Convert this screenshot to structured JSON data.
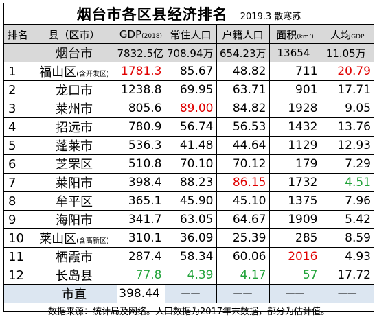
{
  "title": "烟台市各区县经济排名",
  "subtitle": "2019.3 散寒苏",
  "headers": {
    "rank": "排名",
    "county": "县（区市）",
    "gdp": "GDP",
    "gdp_unit": "(2018)",
    "resident": "常住人口",
    "registered": "户籍人口",
    "area": "面积",
    "area_unit": "(km²)",
    "per_capita": "人均",
    "per_capita_unit": "GDP"
  },
  "total": {
    "county": "烟台市",
    "gdp": "7832.5亿",
    "resident": "708.94万",
    "registered": "654.23万",
    "area": "13654",
    "per_capita": "11.05万"
  },
  "rows": [
    {
      "rank": "1",
      "county": "福山区",
      "note": "(含开发区)",
      "gdp": "1781.3",
      "resident": "85.67",
      "registered": "48.82",
      "area": "711",
      "per_capita": "20.79"
    },
    {
      "rank": "2",
      "county": "龙口市",
      "note": "",
      "gdp": "1238.8",
      "resident": "69.95",
      "registered": "63.71",
      "area": "901",
      "per_capita": "17.71"
    },
    {
      "rank": "3",
      "county": "莱州市",
      "note": "",
      "gdp": "805.6",
      "resident": "89.00",
      "registered": "84.82",
      "area": "1928",
      "per_capita": "9.05"
    },
    {
      "rank": "4",
      "county": "招远市",
      "note": "",
      "gdp": "780.9",
      "resident": "56.74",
      "registered": "56.53",
      "area": "1432",
      "per_capita": "13.76"
    },
    {
      "rank": "5",
      "county": "蓬莱市",
      "note": "",
      "gdp": "536.3",
      "resident": "41.48",
      "registered": "44.64",
      "area": "1129",
      "per_capita": "12.93"
    },
    {
      "rank": "6",
      "county": "芝罘区",
      "note": "",
      "gdp": "510.8",
      "resident": "70.10",
      "registered": "70.12",
      "area": "179",
      "per_capita": "7.29"
    },
    {
      "rank": "7",
      "county": "莱阳市",
      "note": "",
      "gdp": "398.4",
      "resident": "88.23",
      "registered": "86.15",
      "area": "1732",
      "per_capita": "4.51"
    },
    {
      "rank": "8",
      "county": "牟平区",
      "note": "",
      "gdp": "365.1",
      "resident": "45.90",
      "registered": "45.10",
      "area": "1375",
      "per_capita": "7.96"
    },
    {
      "rank": "9",
      "county": "海阳市",
      "note": "",
      "gdp": "341.7",
      "resident": "63.05",
      "registered": "64.67",
      "area": "1909",
      "per_capita": "5.42"
    },
    {
      "rank": "10",
      "county": "莱山区",
      "note": "(含高新区)",
      "gdp": "310.1",
      "resident": "36.09",
      "registered": "25.39",
      "area": "285",
      "per_capita": "8.59"
    },
    {
      "rank": "11",
      "county": "栖霞市",
      "note": "",
      "gdp": "287.4",
      "resident": "58.34",
      "registered": "60.06",
      "area": "2016",
      "per_capita": "4.93"
    },
    {
      "rank": "12",
      "county": "长岛县",
      "note": "",
      "gdp": "77.8",
      "resident": "4.39",
      "registered": "4.17",
      "area": "57",
      "per_capita": "17.72"
    }
  ],
  "shizhi": {
    "county": "市直",
    "gdp": "398.44",
    "dash": "——"
  },
  "colors": {
    "red": "#e00000",
    "green": "#22a33a",
    "header_gray": "#d9d9d9",
    "pale_blue": "#dce6f1"
  },
  "footer": "数据来源：统计局及网络。人口数据为2017年末数据，部分为估计值。"
}
